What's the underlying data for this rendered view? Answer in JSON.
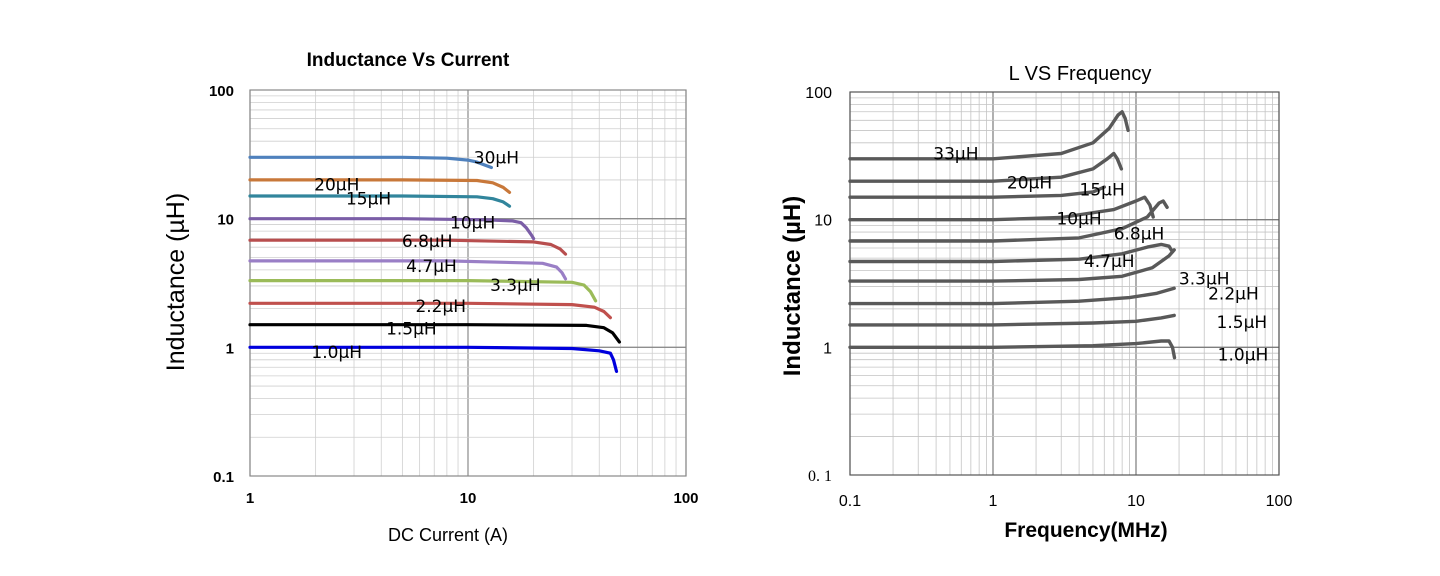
{
  "chart_data": [
    {
      "type": "line",
      "title": "Inductance Vs Current",
      "xlabel": "DC Current (A)",
      "ylabel": "Inductance (µH)",
      "x_scale": "log",
      "y_scale": "log",
      "xlim": [
        1,
        100
      ],
      "ylim": [
        0.1,
        100
      ],
      "x_ticks": [
        "1",
        "10",
        "100"
      ],
      "y_ticks": [
        "100",
        "10",
        "1",
        "0.1"
      ],
      "grid": true,
      "series": [
        {
          "name": "30µH",
          "color": "#4f81bd",
          "label_at": [
            13.5,
            30
          ],
          "points": [
            [
              1,
              30
            ],
            [
              5,
              30
            ],
            [
              8,
              29.5
            ],
            [
              10,
              28.5
            ],
            [
              11,
              27.5
            ],
            [
              12,
              26
            ],
            [
              12.8,
              25
            ]
          ]
        },
        {
          "name": "20µH",
          "color": "#c8783a",
          "label_at": [
            2.5,
            18.5
          ],
          "points": [
            [
              1,
              20
            ],
            [
              5,
              20
            ],
            [
              11,
              19.8
            ],
            [
              13,
              19
            ],
            [
              14.5,
              17.5
            ],
            [
              15.5,
              16
            ]
          ]
        },
        {
          "name": "15µH",
          "color": "#31859c",
          "label_at": [
            3.5,
            14.3
          ],
          "points": [
            [
              1,
              15
            ],
            [
              5,
              15
            ],
            [
              11,
              14.8
            ],
            [
              13,
              14.3
            ],
            [
              14.5,
              13.5
            ],
            [
              15.5,
              12.5
            ]
          ]
        },
        {
          "name": "10µH",
          "color": "#7b5ea7",
          "label_at": [
            10.5,
            9.3
          ],
          "points": [
            [
              1,
              10
            ],
            [
              5,
              10
            ],
            [
              12,
              9.8
            ],
            [
              16,
              9.6
            ],
            [
              17.5,
              9.3
            ],
            [
              18.5,
              8.5
            ],
            [
              19.5,
              7.5
            ],
            [
              20,
              7
            ]
          ]
        },
        {
          "name": "6.8µH",
          "color": "#b84e4e",
          "label_at": [
            6.5,
            6.7
          ],
          "points": [
            [
              1,
              6.8
            ],
            [
              8,
              6.8
            ],
            [
              20,
              6.6
            ],
            [
              24,
              6.3
            ],
            [
              26.5,
              5.8
            ],
            [
              28,
              5.3
            ]
          ]
        },
        {
          "name": "4.7µH",
          "color": "#9a7fc6",
          "label_at": [
            6.8,
            4.3
          ],
          "points": [
            [
              1,
              4.7
            ],
            [
              8,
              4.7
            ],
            [
              22,
              4.5
            ],
            [
              25.5,
              4.2
            ],
            [
              27,
              3.8
            ],
            [
              28,
              3.4
            ]
          ]
        },
        {
          "name": "3.3µH",
          "color": "#9bbb59",
          "label_at": [
            16.5,
            3.05
          ],
          "points": [
            [
              1,
              3.3
            ],
            [
              10,
              3.3
            ],
            [
              30,
              3.2
            ],
            [
              34,
              3.05
            ],
            [
              36.5,
              2.7
            ],
            [
              38.5,
              2.3
            ]
          ]
        },
        {
          "name": "2.2µH",
          "color": "#c0504d",
          "label_at": [
            7.5,
            2.1
          ],
          "points": [
            [
              1,
              2.2
            ],
            [
              10,
              2.2
            ],
            [
              30,
              2.15
            ],
            [
              38,
              2.05
            ],
            [
              42,
              1.9
            ],
            [
              45,
              1.7
            ]
          ]
        },
        {
          "name": "1.5µH",
          "color": "#000000",
          "label_at": [
            5.5,
            1.4
          ],
          "points": [
            [
              1,
              1.5
            ],
            [
              10,
              1.5
            ],
            [
              35,
              1.48
            ],
            [
              42,
              1.42
            ],
            [
              46,
              1.3
            ],
            [
              49.5,
              1.1
            ]
          ]
        },
        {
          "name": "1.0µH",
          "color": "#0000dd",
          "label_at": [
            2.5,
            0.92
          ],
          "points": [
            [
              1,
              1.0
            ],
            [
              10,
              1.0
            ],
            [
              30,
              0.98
            ],
            [
              40,
              0.94
            ],
            [
              45,
              0.9
            ],
            [
              46.5,
              0.8
            ],
            [
              48,
              0.65
            ]
          ]
        }
      ]
    },
    {
      "type": "line",
      "title": "L VS Frequency",
      "xlabel": "Frequency(MHz)",
      "ylabel": "Inductance (µH)",
      "x_scale": "log",
      "y_scale": "log",
      "xlim": [
        0.1,
        100
      ],
      "ylim": [
        0.1,
        100
      ],
      "x_ticks": [
        "0.1",
        "1",
        "10",
        "100"
      ],
      "y_ticks": [
        "100",
        "10",
        "1",
        "0. 1"
      ],
      "grid": true,
      "series": [
        {
          "name": "33µH",
          "color": "#595959",
          "label_at": [
            0.55,
            33
          ],
          "points": [
            [
              0.1,
              30
            ],
            [
              1,
              30
            ],
            [
              3,
              33
            ],
            [
              5,
              40
            ],
            [
              6.5,
              52
            ],
            [
              7.5,
              66
            ],
            [
              8,
              70
            ],
            [
              8.4,
              62
            ],
            [
              8.8,
              50
            ]
          ]
        },
        {
          "name": "20µH",
          "color": "#595959",
          "label_at": [
            1.8,
            19.5
          ],
          "points": [
            [
              0.1,
              20
            ],
            [
              1,
              20
            ],
            [
              3,
              21.5
            ],
            [
              5,
              25
            ],
            [
              6.3,
              30
            ],
            [
              7,
              33
            ],
            [
              7.4,
              30
            ],
            [
              7.9,
              25
            ]
          ]
        },
        {
          "name": "15µH",
          "color": "#595959",
          "label_at": [
            5.8,
            17.2
          ],
          "points": [
            [
              0.1,
              15
            ],
            [
              1,
              15
            ],
            [
              3,
              15.5
            ],
            [
              5,
              16.5
            ],
            [
              6,
              18
            ]
          ]
        },
        {
          "name": "10µH",
          "color": "#595959",
          "label_at": [
            4,
            10.2
          ],
          "points": [
            [
              0.1,
              10
            ],
            [
              1,
              10
            ],
            [
              3,
              10.4
            ],
            [
              7,
              12
            ],
            [
              10,
              14
            ],
            [
              11.5,
              15
            ],
            [
              12.5,
              13
            ],
            [
              13.2,
              10.5
            ]
          ]
        },
        {
          "name": "6.8µH",
          "color": "#595959",
          "label_at": [
            10.5,
            7.8
          ],
          "points": [
            [
              0.1,
              6.8
            ],
            [
              1,
              6.8
            ],
            [
              4,
              7.2
            ],
            [
              8,
              8.5
            ],
            [
              12,
              10.5
            ],
            [
              14.5,
              13.5
            ],
            [
              15.5,
              14
            ],
            [
              16.5,
              12.5
            ]
          ]
        },
        {
          "name": "4.7µH",
          "color": "#595959",
          "label_at": [
            6.5,
            4.75
          ],
          "points": [
            [
              0.1,
              4.7
            ],
            [
              1,
              4.7
            ],
            [
              4,
              4.9
            ],
            [
              8,
              5.4
            ],
            [
              12,
              6.1
            ],
            [
              15,
              6.4
            ],
            [
              17,
              6.2
            ],
            [
              18,
              5.6
            ]
          ]
        },
        {
          "name": "3.3µH",
          "color": "#595959",
          "label_at": [
            30,
            3.45
          ],
          "points": [
            [
              0.1,
              3.3
            ],
            [
              1,
              3.3
            ],
            [
              4,
              3.4
            ],
            [
              8,
              3.6
            ],
            [
              13,
              4.2
            ],
            [
              17,
              5.2
            ],
            [
              18.5,
              5.8
            ]
          ]
        },
        {
          "name": "2.2µH",
          "color": "#595959",
          "label_at": [
            48,
            2.65
          ],
          "points": [
            [
              0.1,
              2.2
            ],
            [
              1,
              2.2
            ],
            [
              4,
              2.3
            ],
            [
              9,
              2.45
            ],
            [
              14,
              2.65
            ],
            [
              18.5,
              2.9
            ]
          ]
        },
        {
          "name": "1.5µH",
          "color": "#595959",
          "label_at": [
            55,
            1.58
          ],
          "points": [
            [
              0.1,
              1.5
            ],
            [
              1,
              1.5
            ],
            [
              5,
              1.55
            ],
            [
              10,
              1.6
            ],
            [
              15,
              1.7
            ],
            [
              18.5,
              1.78
            ]
          ]
        },
        {
          "name": "1.0µH",
          "color": "#595959",
          "label_at": [
            56,
            0.88
          ],
          "points": [
            [
              0.1,
              1.0
            ],
            [
              1,
              1.0
            ],
            [
              5,
              1.03
            ],
            [
              10,
              1.07
            ],
            [
              15,
              1.12
            ],
            [
              17,
              1.12
            ],
            [
              18,
              1.0
            ],
            [
              18.6,
              0.83
            ]
          ]
        }
      ]
    }
  ]
}
